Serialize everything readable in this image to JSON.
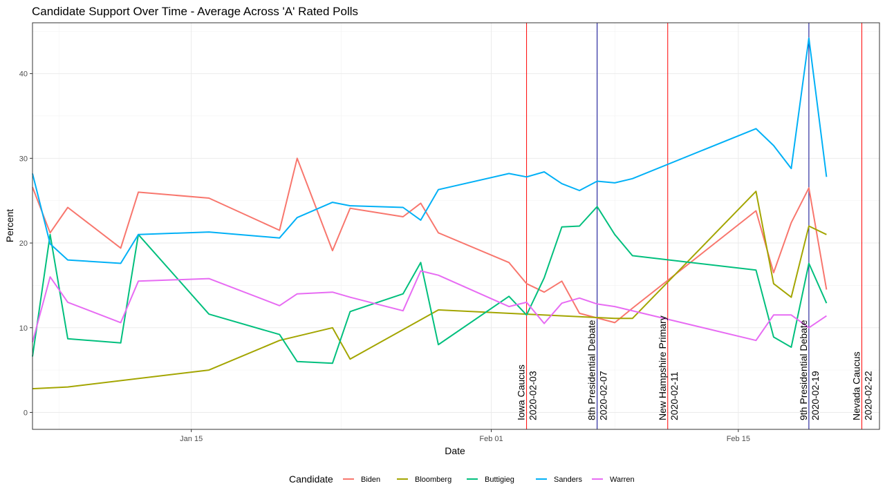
{
  "chart_data": {
    "type": "line",
    "title": "Candidate Support Over Time - Average Across 'A' Rated Polls",
    "xlabel": "Date",
    "ylabel": "Percent",
    "xlim": [
      "2020-01-06",
      "2020-02-23"
    ],
    "ylim": [
      -2,
      46
    ],
    "x_ticks": [
      {
        "date": "2020-01-15",
        "label": "Jan 15"
      },
      {
        "date": "2020-02-01",
        "label": "Feb 01"
      },
      {
        "date": "2020-02-15",
        "label": "Feb 15"
      }
    ],
    "y_ticks": [
      {
        "value": 0,
        "label": "0"
      },
      {
        "value": 10,
        "label": "10"
      },
      {
        "value": 20,
        "label": "20"
      },
      {
        "value": 30,
        "label": "30"
      },
      {
        "value": 40,
        "label": "40"
      }
    ],
    "grid": true,
    "legend": {
      "title": "Candidate",
      "position": "bottom"
    },
    "series": [
      {
        "name": "Biden",
        "color": "#F8766D",
        "points": [
          [
            "2020-01-06",
            26.6
          ],
          [
            "2020-01-07",
            21.2
          ],
          [
            "2020-01-08",
            24.2
          ],
          [
            "2020-01-11",
            19.4
          ],
          [
            "2020-01-12",
            26.0
          ],
          [
            "2020-01-16",
            25.3
          ],
          [
            "2020-01-20",
            21.5
          ],
          [
            "2020-01-21",
            30.0
          ],
          [
            "2020-01-23",
            19.1
          ],
          [
            "2020-01-24",
            24.1
          ],
          [
            "2020-01-27",
            23.1
          ],
          [
            "2020-01-28",
            24.7
          ],
          [
            "2020-01-29",
            21.2
          ],
          [
            "2020-02-02",
            17.7
          ],
          [
            "2020-02-03",
            15.2
          ],
          [
            "2020-02-04",
            14.2
          ],
          [
            "2020-02-05",
            15.5
          ],
          [
            "2020-02-06",
            11.7
          ],
          [
            "2020-02-08",
            10.6
          ],
          [
            "2020-02-09",
            12.3
          ],
          [
            "2020-02-16",
            23.8
          ],
          [
            "2020-02-17",
            16.5
          ],
          [
            "2020-02-18",
            22.4
          ],
          [
            "2020-02-19",
            26.5
          ],
          [
            "2020-02-20",
            14.5
          ]
        ]
      },
      {
        "name": "Bloomberg",
        "color": "#A3A500",
        "points": [
          [
            "2020-01-06",
            2.8
          ],
          [
            "2020-01-08",
            3.0
          ],
          [
            "2020-01-16",
            5.0
          ],
          [
            "2020-01-20",
            8.5
          ],
          [
            "2020-01-23",
            10.0
          ],
          [
            "2020-01-24",
            6.3
          ],
          [
            "2020-01-29",
            12.1
          ],
          [
            "2020-02-03",
            11.6
          ],
          [
            "2020-02-08",
            11.1
          ],
          [
            "2020-02-09",
            11.1
          ],
          [
            "2020-02-16",
            26.1
          ],
          [
            "2020-02-17",
            15.2
          ],
          [
            "2020-02-18",
            13.6
          ],
          [
            "2020-02-19",
            22.0
          ],
          [
            "2020-02-20",
            21.0
          ]
        ]
      },
      {
        "name": "Buttigieg",
        "color": "#00BF7D",
        "points": [
          [
            "2020-01-06",
            6.6
          ],
          [
            "2020-01-07",
            21.0
          ],
          [
            "2020-01-08",
            8.7
          ],
          [
            "2020-01-11",
            8.2
          ],
          [
            "2020-01-12",
            21.0
          ],
          [
            "2020-01-16",
            11.6
          ],
          [
            "2020-01-20",
            9.2
          ],
          [
            "2020-01-21",
            6.0
          ],
          [
            "2020-01-23",
            5.8
          ],
          [
            "2020-01-24",
            11.9
          ],
          [
            "2020-01-27",
            14.0
          ],
          [
            "2020-01-28",
            17.7
          ],
          [
            "2020-01-29",
            8.0
          ],
          [
            "2020-02-02",
            13.7
          ],
          [
            "2020-02-03",
            11.5
          ],
          [
            "2020-02-04",
            15.9
          ],
          [
            "2020-02-05",
            21.9
          ],
          [
            "2020-02-06",
            22.0
          ],
          [
            "2020-02-07",
            24.3
          ],
          [
            "2020-02-08",
            21.0
          ],
          [
            "2020-02-09",
            18.5
          ],
          [
            "2020-02-16",
            16.8
          ],
          [
            "2020-02-17",
            8.9
          ],
          [
            "2020-02-18",
            7.7
          ],
          [
            "2020-02-19",
            17.6
          ],
          [
            "2020-02-20",
            12.9
          ]
        ]
      },
      {
        "name": "Sanders",
        "color": "#00B0F6",
        "points": [
          [
            "2020-01-06",
            28.2
          ],
          [
            "2020-01-07",
            19.9
          ],
          [
            "2020-01-08",
            18.0
          ],
          [
            "2020-01-11",
            17.6
          ],
          [
            "2020-01-12",
            21.0
          ],
          [
            "2020-01-16",
            21.3
          ],
          [
            "2020-01-20",
            20.6
          ],
          [
            "2020-01-21",
            23.0
          ],
          [
            "2020-01-23",
            24.8
          ],
          [
            "2020-01-24",
            24.4
          ],
          [
            "2020-01-27",
            24.2
          ],
          [
            "2020-01-28",
            22.7
          ],
          [
            "2020-01-29",
            26.3
          ],
          [
            "2020-02-02",
            28.2
          ],
          [
            "2020-02-03",
            27.8
          ],
          [
            "2020-02-04",
            28.4
          ],
          [
            "2020-02-05",
            27.0
          ],
          [
            "2020-02-06",
            26.2
          ],
          [
            "2020-02-07",
            27.3
          ],
          [
            "2020-02-08",
            27.1
          ],
          [
            "2020-02-09",
            27.6
          ],
          [
            "2020-02-16",
            33.5
          ],
          [
            "2020-02-17",
            31.5
          ],
          [
            "2020-02-18",
            28.8
          ],
          [
            "2020-02-19",
            44.2
          ],
          [
            "2020-02-20",
            27.8
          ]
        ]
      },
      {
        "name": "Warren",
        "color": "#E76BF3",
        "points": [
          [
            "2020-01-06",
            8.3
          ],
          [
            "2020-01-07",
            16.0
          ],
          [
            "2020-01-08",
            13.0
          ],
          [
            "2020-01-11",
            10.6
          ],
          [
            "2020-01-12",
            15.5
          ],
          [
            "2020-01-16",
            15.8
          ],
          [
            "2020-01-20",
            12.6
          ],
          [
            "2020-01-21",
            14.0
          ],
          [
            "2020-01-23",
            14.2
          ],
          [
            "2020-01-24",
            13.6
          ],
          [
            "2020-01-27",
            12.0
          ],
          [
            "2020-01-28",
            16.7
          ],
          [
            "2020-01-29",
            16.2
          ],
          [
            "2020-02-02",
            12.5
          ],
          [
            "2020-02-03",
            13.0
          ],
          [
            "2020-02-04",
            10.5
          ],
          [
            "2020-02-05",
            12.9
          ],
          [
            "2020-02-06",
            13.5
          ],
          [
            "2020-02-07",
            12.8
          ],
          [
            "2020-02-08",
            12.5
          ],
          [
            "2020-02-16",
            8.5
          ],
          [
            "2020-02-17",
            11.5
          ],
          [
            "2020-02-18",
            11.5
          ],
          [
            "2020-02-19",
            10.0
          ],
          [
            "2020-02-20",
            11.4
          ]
        ]
      }
    ],
    "events": [
      {
        "date": "2020-02-03",
        "name": "Iowa Caucus",
        "date_label": "2020-02-03",
        "color": "#FF0000"
      },
      {
        "date": "2020-02-07",
        "name": "8th Presidential Debate",
        "date_label": "2020-02-07",
        "color": "#00008B"
      },
      {
        "date": "2020-02-11",
        "name": "New Hampshire Primary",
        "date_label": "2020-02-11",
        "color": "#FF0000"
      },
      {
        "date": "2020-02-19",
        "name": "9th Presidential Debate",
        "date_label": "2020-02-19",
        "color": "#00008B"
      },
      {
        "date": "2020-02-22",
        "name": "Nevada Caucus",
        "date_label": "2020-02-22",
        "color": "#FF0000"
      }
    ]
  }
}
